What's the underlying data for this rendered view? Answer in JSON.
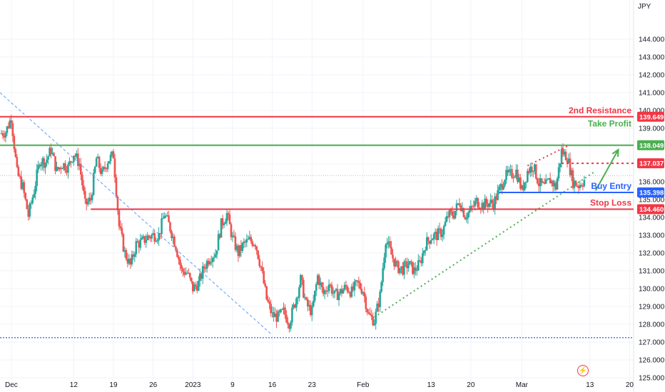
{
  "currency": "JPY",
  "colors": {
    "up": "#26a69a",
    "down": "#ef5350",
    "resistance": "#f23645",
    "take_profit": "#4caf50",
    "entry": "#2962ff",
    "trend_dots": "#4caf50",
    "blue_dash": "#5b9cf6"
  },
  "chart_data": {
    "type": "candlestick",
    "y_axis": {
      "ylim": [
        124.8,
        146.2
      ],
      "ticks": [
        144.0,
        143.0,
        142.0,
        141.0,
        140.0,
        139.0,
        138.0,
        137.0,
        136.0,
        135.0,
        134.0,
        133.0,
        132.0,
        131.0,
        130.0,
        129.0,
        128.0,
        127.0,
        126.0,
        125.0
      ],
      "tick_labels": [
        "144.000",
        "143.000",
        "142.000",
        "141.000",
        "140.000",
        "139.000",
        "138.000",
        "137.000",
        "136.000",
        "135.000",
        "134.000",
        "133.000",
        "132.000",
        "131.000",
        "130.000",
        "129.000",
        "128.000",
        "127.000",
        "126.000",
        "125.000"
      ]
    },
    "x_axis": {
      "ticks": [
        {
          "label": "Dec",
          "x": 1
        },
        {
          "label": "12",
          "x": 12
        },
        {
          "label": "19",
          "x": 19
        },
        {
          "label": "26",
          "x": 26
        },
        {
          "label": "2023",
          "x": 33
        },
        {
          "label": "9",
          "x": 40
        },
        {
          "label": "16",
          "x": 47
        },
        {
          "label": "23",
          "x": 54
        },
        {
          "label": "Feb",
          "x": 63
        },
        {
          "label": "13",
          "x": 75
        },
        {
          "label": "20",
          "x": 82
        },
        {
          "label": "Mar",
          "x": 91
        },
        {
          "label": "13",
          "x": 103
        },
        {
          "label": "20",
          "x": 110
        }
      ],
      "xlim": [
        -1,
        110.7
      ]
    },
    "close_path": [
      [
        -1,
        138.7
      ],
      [
        0,
        138.8
      ],
      [
        1,
        139.6
      ],
      [
        2,
        136.5
      ],
      [
        3,
        135.7
      ],
      [
        4,
        134.1
      ],
      [
        5,
        135.5
      ],
      [
        6,
        137.2
      ],
      [
        7,
        137.1
      ],
      [
        8,
        137.8
      ],
      [
        9,
        136.6
      ],
      [
        10,
        137.0
      ],
      [
        11,
        136.8
      ],
      [
        12,
        137.6
      ],
      [
        13,
        137.0
      ],
      [
        14,
        134.7
      ],
      [
        15,
        135.0
      ],
      [
        16,
        137.3
      ],
      [
        17,
        136.4
      ],
      [
        18,
        137.2
      ],
      [
        19,
        137.5
      ],
      [
        20,
        133.5
      ],
      [
        21,
        132.0
      ],
      [
        22,
        131.3
      ],
      [
        23,
        132.5
      ],
      [
        24,
        132.6
      ],
      [
        25,
        132.9
      ],
      [
        26,
        133.0
      ],
      [
        27,
        133.0
      ],
      [
        28,
        134.2
      ],
      [
        29,
        133.4
      ],
      [
        30,
        132.4
      ],
      [
        31,
        131.0
      ],
      [
        32,
        130.9
      ],
      [
        33,
        130.0
      ],
      [
        34,
        130.3
      ],
      [
        35,
        131.2
      ],
      [
        36,
        131.8
      ],
      [
        37,
        132.0
      ],
      [
        38,
        133.6
      ],
      [
        39,
        134.2
      ],
      [
        40,
        132.8
      ],
      [
        41,
        132.0
      ],
      [
        42,
        132.5
      ],
      [
        43,
        132.7
      ],
      [
        44,
        132.6
      ],
      [
        45,
        131.2
      ],
      [
        46,
        129.4
      ],
      [
        47,
        128.5
      ],
      [
        48,
        128.4
      ],
      [
        49,
        128.7
      ],
      [
        50,
        128.1
      ],
      [
        51,
        129.2
      ],
      [
        52,
        130.5
      ],
      [
        53,
        129.1
      ],
      [
        54,
        128.7
      ],
      [
        55,
        130.7
      ],
      [
        56,
        129.7
      ],
      [
        57,
        130.3
      ],
      [
        58,
        129.6
      ],
      [
        59,
        129.8
      ],
      [
        60,
        130.1
      ],
      [
        61,
        129.8
      ],
      [
        62,
        130.3
      ],
      [
        63,
        129.9
      ],
      [
        64,
        128.5
      ],
      [
        65,
        128.2
      ],
      [
        66,
        129.6
      ],
      [
        67,
        132.8
      ],
      [
        68,
        131.9
      ],
      [
        69,
        131.2
      ],
      [
        70,
        131.1
      ],
      [
        71,
        131.4
      ],
      [
        72,
        131.0
      ],
      [
        73,
        131.4
      ],
      [
        74,
        132.5
      ],
      [
        75,
        132.9
      ],
      [
        76,
        133.0
      ],
      [
        77,
        133.2
      ],
      [
        78,
        134.1
      ],
      [
        79,
        134.2
      ],
      [
        80,
        134.9
      ],
      [
        81,
        134.1
      ],
      [
        82,
        134.4
      ],
      [
        83,
        134.9
      ],
      [
        84,
        134.7
      ],
      [
        85,
        134.8
      ],
      [
        86,
        134.8
      ],
      [
        87,
        135.5
      ],
      [
        88,
        136.3
      ],
      [
        89,
        136.4
      ],
      [
        90,
        136.6
      ],
      [
        91,
        135.5
      ],
      [
        92,
        136.6
      ],
      [
        93,
        136.9
      ],
      [
        94,
        135.9
      ],
      [
        95,
        135.7
      ],
      [
        96,
        136.1
      ],
      [
        97,
        135.7
      ],
      [
        98,
        137.7
      ],
      [
        99,
        137.4
      ],
      [
        100,
        136.0
      ],
      [
        101,
        135.8
      ],
      [
        102,
        136.1
      ]
    ],
    "levels": [
      {
        "name": "2nd Resistance",
        "value": 139.649,
        "label": "139.649",
        "color": "#f23645",
        "x_start": -1
      },
      {
        "name": "Take Profit",
        "value": 138.049,
        "label": "138.049",
        "color": "#4caf50",
        "x_start": -1
      },
      {
        "name": "",
        "value": 137.037,
        "label": "137.037",
        "color": "#f23645",
        "style": "dotted",
        "x_start": 98
      },
      {
        "name": "Buy Entry",
        "value": 135.398,
        "label": "135.398",
        "color": "#2962ff",
        "x_start": 87
      },
      {
        "name": "Stop Loss",
        "value": 134.46,
        "label": "134.460",
        "color": "#f23645",
        "x_start": 15
      }
    ],
    "trend_lines": [
      {
        "kind": "dotted-green",
        "from": [
          65,
          128.4
        ],
        "to": [
          104,
          136.6
        ]
      },
      {
        "kind": "dotted-red",
        "from": [
          92,
          136.9
        ],
        "to": [
          99,
          138.0
        ]
      },
      {
        "kind": "dashed-blue",
        "from": [
          -1,
          141.0
        ],
        "to": [
          47,
          127.4
        ]
      },
      {
        "kind": "dotted-blue-horizontal",
        "from": [
          -1,
          127.25
        ],
        "to": [
          110.7,
          127.25
        ]
      }
    ],
    "arrow": {
      "from": [
        104,
        135.5
      ],
      "to": [
        108,
        137.8
      ]
    }
  },
  "annotations": {
    "resistance2": "2nd Resistance",
    "take_profit": "Take Profit",
    "buy_entry": "Buy Entry",
    "stop_loss": "Stop Loss"
  },
  "icons": {
    "bolt": "lightning-bolt-icon"
  }
}
